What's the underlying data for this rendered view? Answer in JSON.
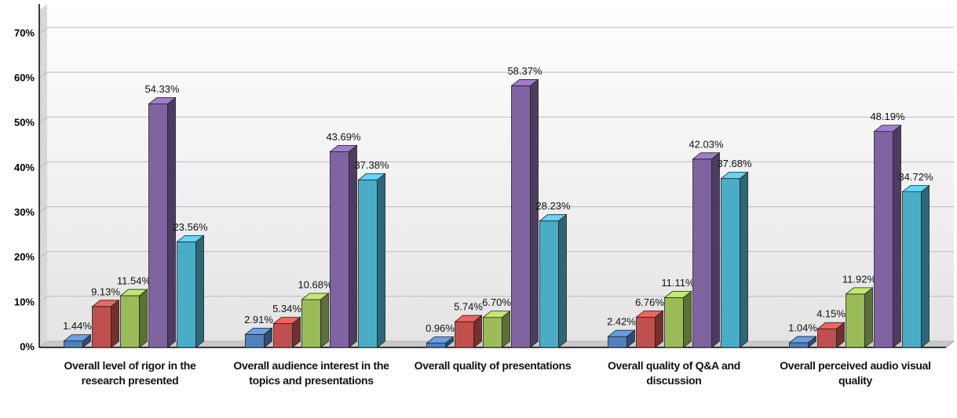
{
  "chart_data": {
    "type": "bar3d",
    "categories": [
      "Overall level of rigor in the research presented",
      "Overall audience interest in the topics and presentations",
      "Overall quality of presentations",
      "Overall quality of Q&A and discussion",
      "Overall perceived audio visual quality"
    ],
    "series": [
      {
        "color": "#4f81bd",
        "values": [
          1.44,
          2.91,
          0.96,
          2.42,
          1.04
        ],
        "value_labels": [
          "1.44%",
          "2.91%",
          "0.96%",
          "2.42%",
          "1.04%"
        ]
      },
      {
        "color": "#c0504d",
        "values": [
          9.13,
          5.34,
          5.74,
          6.76,
          4.15
        ],
        "value_labels": [
          "9.13%",
          "5.34%",
          "5.74%",
          "6.76%",
          "4.15%"
        ]
      },
      {
        "color": "#9bbb59",
        "values": [
          11.54,
          10.68,
          6.7,
          11.11,
          11.92
        ],
        "value_labels": [
          "11.54%",
          "10.68%",
          "6.70%",
          "11.11%",
          "11.92%"
        ]
      },
      {
        "color": "#8064a2",
        "values": [
          54.33,
          43.69,
          58.37,
          42.03,
          48.19
        ],
        "value_labels": [
          "54.33%",
          "43.69%",
          "58.37%",
          "42.03%",
          "48.19%"
        ]
      },
      {
        "color": "#4bacc6",
        "values": [
          23.56,
          37.38,
          28.23,
          37.68,
          34.72
        ],
        "value_labels": [
          "23.56%",
          "37.38%",
          "28.23%",
          "37.68%",
          "34.72%"
        ]
      }
    ],
    "ylim": [
      0,
      70
    ],
    "yticks": [
      {
        "value": 0,
        "label": "0%"
      },
      {
        "value": 10,
        "label": "10%"
      },
      {
        "value": 20,
        "label": "20%"
      },
      {
        "value": 30,
        "label": "30%"
      },
      {
        "value": 40,
        "label": "40%"
      },
      {
        "value": 50,
        "label": "50%"
      },
      {
        "value": 60,
        "label": "60%"
      },
      {
        "value": 70,
        "label": "70%"
      }
    ],
    "grid": true
  }
}
